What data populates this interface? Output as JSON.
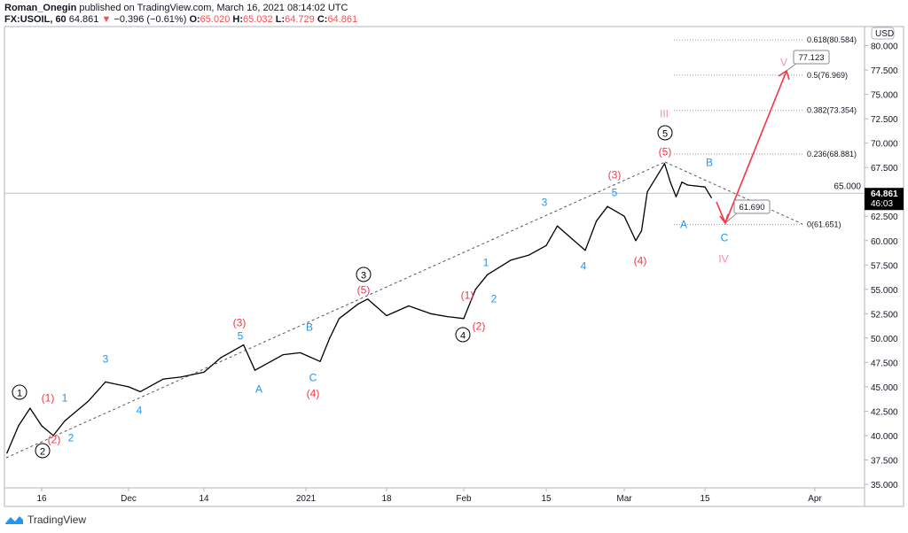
{
  "header": {
    "author": "Roman_Onegin",
    "published": "published on TradingView.com, March 16, 2021 08:14:02 UTC"
  },
  "symbol": {
    "name": "FX:USOIL, 60",
    "last": "64.861",
    "change": "−0.396 (−0.61%)",
    "o_label": "O:",
    "o": "65.020",
    "h_label": "H:",
    "h": "65.032",
    "l_label": "L:",
    "l": "64.729",
    "c_label": "C:",
    "c": "64.861",
    "down_color": "#ef5350"
  },
  "chart_data": {
    "type": "line",
    "currency": "USD",
    "ylim": [
      35,
      80.584
    ],
    "y_ticks": [
      "35.000",
      "37.500",
      "40.000",
      "42.500",
      "45.000",
      "47.500",
      "50.000",
      "52.500",
      "55.000",
      "57.500",
      "60.000",
      "62.500",
      "65.000",
      "67.500",
      "70.000",
      "72.500",
      "75.000",
      "77.500",
      "80.000"
    ],
    "x_ticks": [
      {
        "label": "16",
        "date": "2020-11-16"
      },
      {
        "label": "Dec",
        "date": "2020-12-01"
      },
      {
        "label": "14",
        "date": "2020-12-14"
      },
      {
        "label": "2021",
        "date": "2021-01-01"
      },
      {
        "label": "18",
        "date": "2021-01-18"
      },
      {
        "label": "Feb",
        "date": "2021-02-01"
      },
      {
        "label": "15",
        "date": "2021-02-15"
      },
      {
        "label": "Mar",
        "date": "2021-03-01"
      },
      {
        "label": "15",
        "date": "2021-03-15"
      },
      {
        "label": "Apr",
        "date": "2021-04-01"
      }
    ],
    "series": [
      {
        "values": [
          [
            "2020-11-10",
            38.2
          ],
          [
            "2020-11-12",
            41
          ],
          [
            "2020-11-14",
            42.8
          ],
          [
            "2020-11-16",
            41
          ],
          [
            "2020-11-18",
            40
          ],
          [
            "2020-11-20",
            41.5
          ],
          [
            "2020-11-24",
            43.5
          ],
          [
            "2020-11-27",
            45.5
          ],
          [
            "2020-12-01",
            45
          ],
          [
            "2020-12-03",
            44.5
          ],
          [
            "2020-12-07",
            45.8
          ],
          [
            "2020-12-10",
            46
          ],
          [
            "2020-12-14",
            46.5
          ],
          [
            "2020-12-17",
            48
          ],
          [
            "2020-12-21",
            49.3
          ],
          [
            "2020-12-23",
            46.7
          ],
          [
            "2020-12-28",
            48.3
          ],
          [
            "2020-12-31",
            48.5
          ],
          [
            "2021-01-04",
            47.6
          ],
          [
            "2021-01-06",
            50
          ],
          [
            "2021-01-08",
            52
          ],
          [
            "2021-01-12",
            53.5
          ],
          [
            "2021-01-14",
            54
          ],
          [
            "2021-01-18",
            52.3
          ],
          [
            "2021-01-22",
            53.3
          ],
          [
            "2021-01-26",
            52.5
          ],
          [
            "2021-01-29",
            52.2
          ],
          [
            "2021-02-01",
            52
          ],
          [
            "2021-02-03",
            55
          ],
          [
            "2021-02-05",
            56.5
          ],
          [
            "2021-02-09",
            58
          ],
          [
            "2021-02-12",
            58.5
          ],
          [
            "2021-02-15",
            59.5
          ],
          [
            "2021-02-17",
            61.5
          ],
          [
            "2021-02-19",
            60.5
          ],
          [
            "2021-02-22",
            59
          ],
          [
            "2021-02-24",
            62
          ],
          [
            "2021-02-26",
            63.5
          ],
          [
            "2021-03-01",
            62.5
          ],
          [
            "2021-03-03",
            60
          ],
          [
            "2021-03-04",
            61
          ],
          [
            "2021-03-05",
            65
          ],
          [
            "2021-03-08",
            67.9
          ],
          [
            "2021-03-09",
            66
          ],
          [
            "2021-03-10",
            64.5
          ],
          [
            "2021-03-11",
            66
          ],
          [
            "2021-03-12",
            65.7
          ],
          [
            "2021-03-15",
            65.5
          ],
          [
            "2021-03-16",
            64.4
          ]
        ]
      }
    ],
    "last_price": {
      "value": "64.861",
      "countdown": "46:03"
    },
    "fib_levels": [
      "0.618(80.584)",
      "0.5(76.969)",
      "0.382(73.354)",
      "0.236(68.881)",
      "0(61.651)"
    ],
    "fib_values": [
      80.584,
      76.969,
      73.354,
      68.881,
      61.651
    ],
    "callouts": [
      "77.123",
      "61.690"
    ],
    "wave_labels": [
      {
        "t": "1",
        "c": "#000",
        "circle": true
      },
      {
        "t": "(1)",
        "c": "#f23645"
      },
      {
        "t": "1",
        "c": "#2196f3"
      },
      {
        "t": "(2)",
        "c": "#f23645"
      },
      {
        "t": "2",
        "c": "#2196f3"
      },
      {
        "t": "2",
        "c": "#000",
        "circle": true
      },
      {
        "t": "3",
        "c": "#2196f3"
      },
      {
        "t": "4",
        "c": "#2196f3"
      },
      {
        "t": "(3)",
        "c": "#f23645"
      },
      {
        "t": "5",
        "c": "#2196f3"
      },
      {
        "t": "A",
        "c": "#2196f3"
      },
      {
        "t": "B",
        "c": "#2196f3"
      },
      {
        "t": "C",
        "c": "#2196f3"
      },
      {
        "t": "(4)",
        "c": "#f23645"
      },
      {
        "t": "3",
        "c": "#000",
        "circle": true
      },
      {
        "t": "(5)",
        "c": "#f23645"
      },
      {
        "t": "(1)",
        "c": "#f23645"
      },
      {
        "t": "1",
        "c": "#2196f3"
      },
      {
        "t": "2",
        "c": "#2196f3"
      },
      {
        "t": "(2)",
        "c": "#f23645"
      },
      {
        "t": "4",
        "c": "#000",
        "circle": true
      },
      {
        "t": "3",
        "c": "#2196f3"
      },
      {
        "t": "5",
        "c": "#2196f3"
      },
      {
        "t": "(3)",
        "c": "#f23645"
      },
      {
        "t": "4",
        "c": "#2196f3"
      },
      {
        "t": "(4)",
        "c": "#f23645"
      },
      {
        "t": "III",
        "c": "#f48fb1"
      },
      {
        "t": "5",
        "c": "#000",
        "circle": true
      },
      {
        "t": "(5)",
        "c": "#f23645"
      },
      {
        "t": "A",
        "c": "#2196f3"
      },
      {
        "t": "B",
        "c": "#2196f3"
      },
      {
        "t": "C",
        "c": "#2196f3"
      },
      {
        "t": "IV",
        "c": "#f48fb1"
      },
      {
        "t": "V",
        "c": "#f48fb1"
      }
    ]
  },
  "footer": {
    "brand": "TradingView",
    "brand_color": "#2196f3"
  }
}
